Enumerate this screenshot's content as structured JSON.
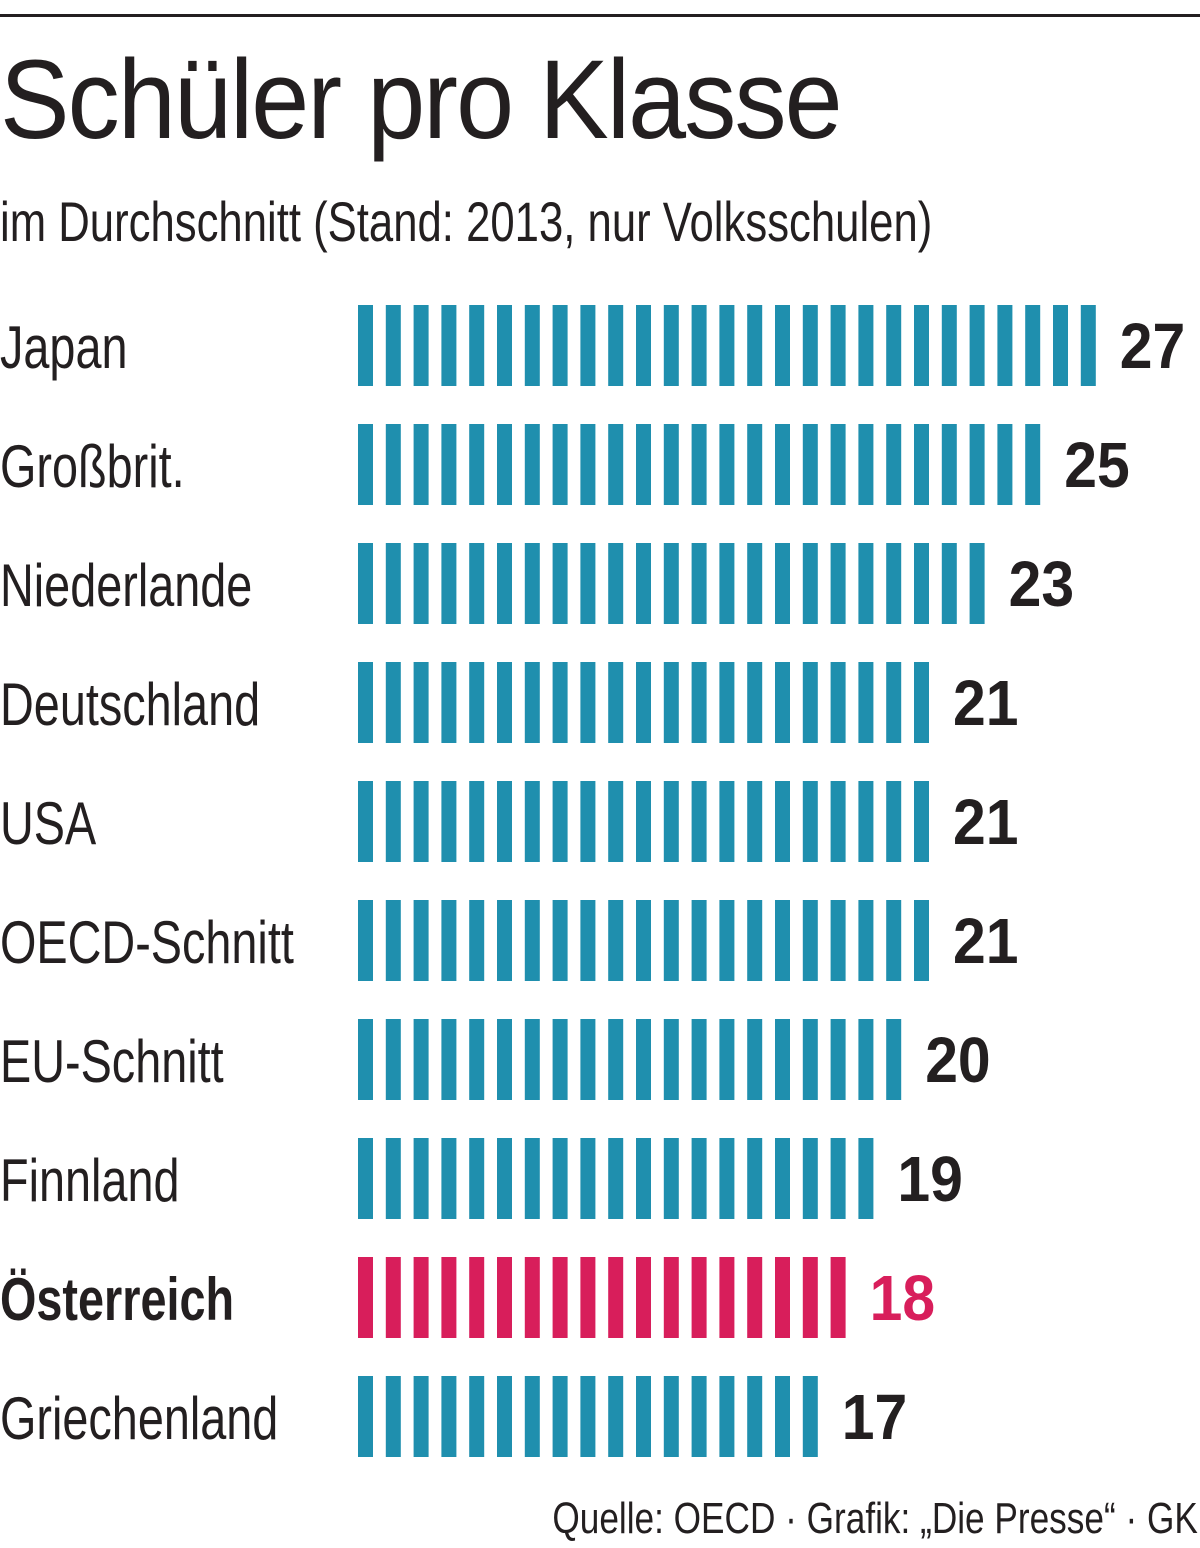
{
  "header": {
    "title": "Schüler pro Klasse",
    "subtitle": "im Durchschnitt (Stand: 2013, nur Volksschulen)"
  },
  "footer": {
    "source": "Quelle: OECD · Grafik: „Die Presse“ · GK"
  },
  "chart_data": {
    "type": "bar",
    "orientation": "horizontal",
    "unit_mark": "one stripe per pupil",
    "categories": [
      "Japan",
      "Großbrit.",
      "Niederlande",
      "Deutschland",
      "USA",
      "OECD-Schnitt",
      "EU-Schnitt",
      "Finnland",
      "Österreich",
      "Griechenland"
    ],
    "values": [
      27,
      25,
      23,
      21,
      21,
      21,
      20,
      19,
      18,
      17
    ],
    "value_labels": [
      "27",
      "25",
      "23",
      "21",
      "21",
      "21",
      "20",
      "19",
      "18",
      "17"
    ],
    "highlight": "Österreich",
    "colors": {
      "bar": "#1f8fae",
      "highlight": "#d81e5b",
      "text": "#231f20"
    },
    "title": "Schüler pro Klasse",
    "subtitle": "im Durchschnitt (Stand: 2013, nur Volksschulen)",
    "xlabel": "",
    "ylabel": "",
    "grid": false,
    "legend": "none"
  }
}
